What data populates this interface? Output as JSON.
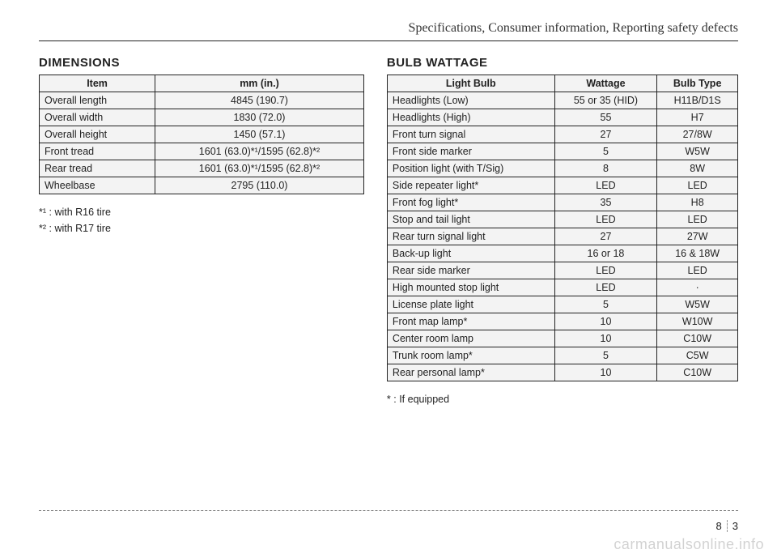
{
  "doc_header": "Specifications, Consumer information, Reporting safety defects",
  "dimensions": {
    "title": "DIMENSIONS",
    "columns": [
      "Item",
      "mm (in.)"
    ],
    "rows": [
      {
        "item": "Overall length",
        "value": "4845 (190.7)"
      },
      {
        "item": "Overall width",
        "value": "1830 (72.0)"
      },
      {
        "item": "Overall height",
        "value": "1450 (57.1)"
      },
      {
        "item": "Front tread",
        "value": "1601 (63.0)*¹/1595 (62.8)*²"
      },
      {
        "item": "Rear tread",
        "value": "1601 (63.0)*¹/1595 (62.8)*²"
      },
      {
        "item": "Wheelbase",
        "value": "2795 (110.0)"
      }
    ],
    "footnotes": [
      "*¹ : with R16 tire",
      "*² : with R17 tire"
    ]
  },
  "bulbs": {
    "title": "BULB WATTAGE",
    "columns": [
      "Light Bulb",
      "Wattage",
      "Bulb Type"
    ],
    "rows": [
      {
        "name": "Headlights (Low)",
        "watt": "55 or 35 (HID)",
        "type": "H11B/D1S"
      },
      {
        "name": "Headlights (High)",
        "watt": "55",
        "type": "H7"
      },
      {
        "name": "Front turn signal",
        "watt": "27",
        "type": "27/8W"
      },
      {
        "name": "Front side marker",
        "watt": "5",
        "type": "W5W"
      },
      {
        "name": "Position light (with T/Sig)",
        "watt": "8",
        "type": "8W"
      },
      {
        "name": "Side repeater light*",
        "watt": "LED",
        "type": "LED"
      },
      {
        "name": "Front fog light*",
        "watt": "35",
        "type": "H8"
      },
      {
        "name": "Stop and tail light",
        "watt": "LED",
        "type": "LED"
      },
      {
        "name": "Rear turn signal light",
        "watt": "27",
        "type": "27W"
      },
      {
        "name": "Back-up light",
        "watt": "16 or 18",
        "type": "16 & 18W"
      },
      {
        "name": "Rear side marker",
        "watt": "LED",
        "type": "LED"
      },
      {
        "name": "High mounted stop light",
        "watt": "LED",
        "type": "·"
      },
      {
        "name": "License plate light",
        "watt": "5",
        "type": "W5W"
      },
      {
        "name": "Front map lamp*",
        "watt": "10",
        "type": "W10W"
      },
      {
        "name": "Center room lamp",
        "watt": "10",
        "type": "C10W"
      },
      {
        "name": "Trunk room lamp*",
        "watt": "5",
        "type": "C5W"
      },
      {
        "name": "Rear personal lamp*",
        "watt": "10",
        "type": "C10W"
      }
    ],
    "footnote": "* : If equipped"
  },
  "page_number": {
    "section": "8",
    "page": "3"
  },
  "watermark": "carmanualsonline.info"
}
